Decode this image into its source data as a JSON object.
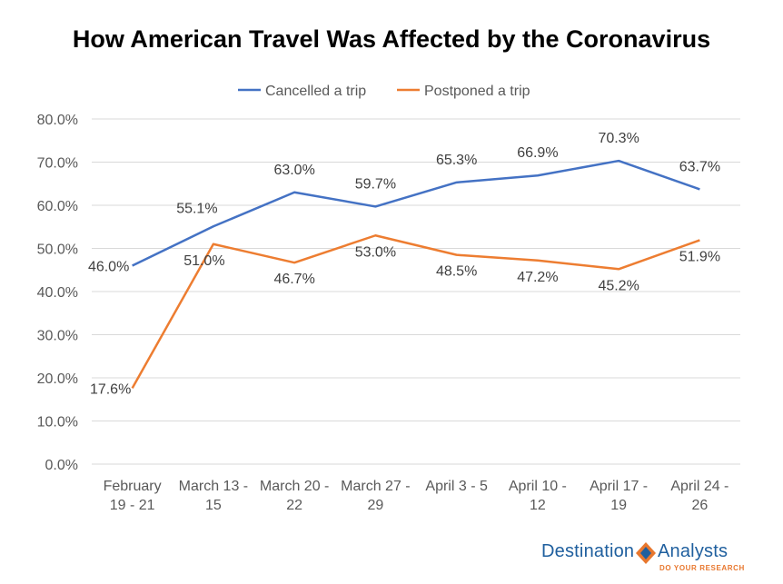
{
  "chart_data": {
    "type": "line",
    "title": "How American Travel Was Affected by the Coronavirus",
    "categories": [
      [
        "February",
        "19 - 21"
      ],
      [
        "March 13 -",
        "15"
      ],
      [
        "March 20 -",
        "22"
      ],
      [
        "March 27 -",
        "29"
      ],
      [
        "April 3 - 5"
      ],
      [
        "April 10 -",
        "12"
      ],
      [
        "April 17 -",
        "19"
      ],
      [
        "April 24 -",
        "26"
      ]
    ],
    "series": [
      {
        "name": "Cancelled a trip",
        "color": "#4472c4",
        "values": [
          46.0,
          55.1,
          63.0,
          59.7,
          65.3,
          66.9,
          70.3,
          63.7
        ],
        "labels": [
          "46.0%",
          "55.1%",
          "63.0%",
          "59.7%",
          "65.3%",
          "66.9%",
          "70.3%",
          "63.7%"
        ]
      },
      {
        "name": "Postponed a trip",
        "color": "#ed7d31",
        "values": [
          17.6,
          51.0,
          46.7,
          53.0,
          48.5,
          47.2,
          45.2,
          51.9
        ],
        "labels": [
          "17.6%",
          "51.0%",
          "46.7%",
          "53.0%",
          "48.5%",
          "47.2%",
          "45.2%",
          "51.9%"
        ]
      }
    ],
    "ylim": [
      0,
      80
    ],
    "yticks": [
      0,
      10,
      20,
      30,
      40,
      50,
      60,
      70,
      80
    ],
    "ytick_labels": [
      "0.0%",
      "10.0%",
      "20.0%",
      "30.0%",
      "40.0%",
      "50.0%",
      "60.0%",
      "70.0%",
      "80.0%"
    ],
    "grid": true,
    "legend_position": "top-center"
  },
  "branding": {
    "logo_left": "Destination",
    "logo_right": "Analysts",
    "tagline": "DO YOUR RESEARCH",
    "color_blue": "#1f5f9e",
    "color_orange": "#e8772e"
  }
}
